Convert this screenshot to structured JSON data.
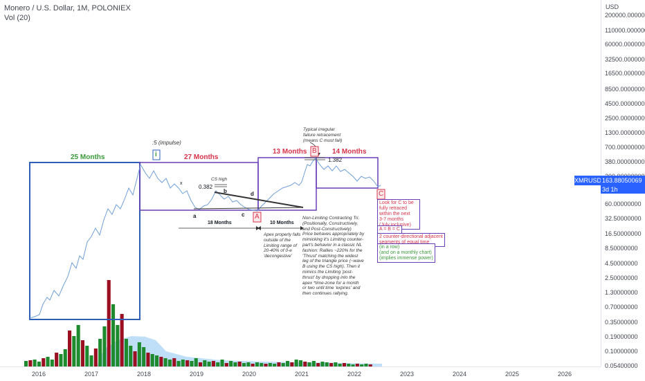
{
  "header": {
    "title": "Monero / U.S. Dollar, 1M, POLONIEX",
    "indicator": "Vol (20)"
  },
  "price_axis": {
    "unit": "USD",
    "ticks": [
      "200000.00000000",
      "110000.00000000",
      "60000.00000000",
      "32500.00000000",
      "16500.00000000",
      "8500.00000000",
      "4500.00000000",
      "2500.00000000",
      "1300.00000000",
      "700.00000000",
      "380.00000000",
      "200.00000000",
      "60.00000000",
      "32.50000000",
      "16.50000000",
      "8.50000000",
      "4.50000000",
      "2.50000000",
      "1.30000000",
      "0.70000000",
      "0.35000000",
      "0.19000000",
      "0.10000000",
      "0.05400000"
    ]
  },
  "time_axis": {
    "years": [
      "2016",
      "2017",
      "2018",
      "2019",
      "2020",
      "2021",
      "2022",
      "2023",
      "2024",
      "2025",
      "2026"
    ]
  },
  "price_badge": {
    "symbol": "XMRUSD",
    "value": "163.88050069",
    "countdown": "3d 1h"
  },
  "annotations": {
    "months_25": "25 Months",
    "months_27": "27 Months",
    "months_13": "13 Months",
    "months_14": "14 Months",
    "wave_i": "i",
    "impulse": ":5 (impulse)",
    "label_A": "A",
    "label_B": "B",
    "label_C": "C",
    "fib_0382": "0.382",
    "fib_1382": "1.382",
    "cs_high": "CS high",
    "leg_a": "a",
    "leg_b": "b",
    "leg_c": "c",
    "leg_d": "d",
    "leg_x": "x",
    "months_18": "18 Months",
    "months_10": "10 Months",
    "irregular_note": [
      "Typical irregular",
      "failure retracement",
      "(means C must fail)"
    ],
    "apex_note": [
      "Apex properly falls",
      "outside of the",
      "Limiting range of",
      "20-40% of 0-e",
      "'decongestive'"
    ],
    "triangle_note": [
      "Non-Limiting Contracting Tri.",
      "(Positionally, Constructively,",
      "and Post-Constructively)",
      "Price behaves appropriately by",
      "mimicking it's Limiting counter-",
      "part's behavior in a classic NL",
      "fashion: Rallies ~220% for the",
      "'Thrust' matching the widest",
      "leg of the triangle price (~wave",
      "B using the CS high). Then it",
      "mimics the Limiting 'post-",
      "thrust' by dropping into the",
      "apex *time-zone for a month",
      "or two until time 'expires' and",
      "then continues rallying."
    ],
    "look_for_c": [
      "Look for C to be",
      "fully retraced",
      "within the next",
      "3-7 months",
      "(July inclusive)"
    ],
    "abc_equal": "A = B = C",
    "segments_note": [
      "2 counter-directional adjacent",
      "segments of equal time"
    ],
    "power_note": [
      "(in a row)",
      "(and on a monthly chart)",
      "(implies immense power)"
    ]
  },
  "colors": {
    "line": "#6f9fd8",
    "blue_box": "#2e5fb8",
    "purple_box": "#6a3fb8",
    "green_text": "#3a9a3a",
    "red_text": "#d6324a",
    "vol_up": "#1e8a2e",
    "vol_down": "#9b1020",
    "vol_area": "#a9d4f5"
  }
}
